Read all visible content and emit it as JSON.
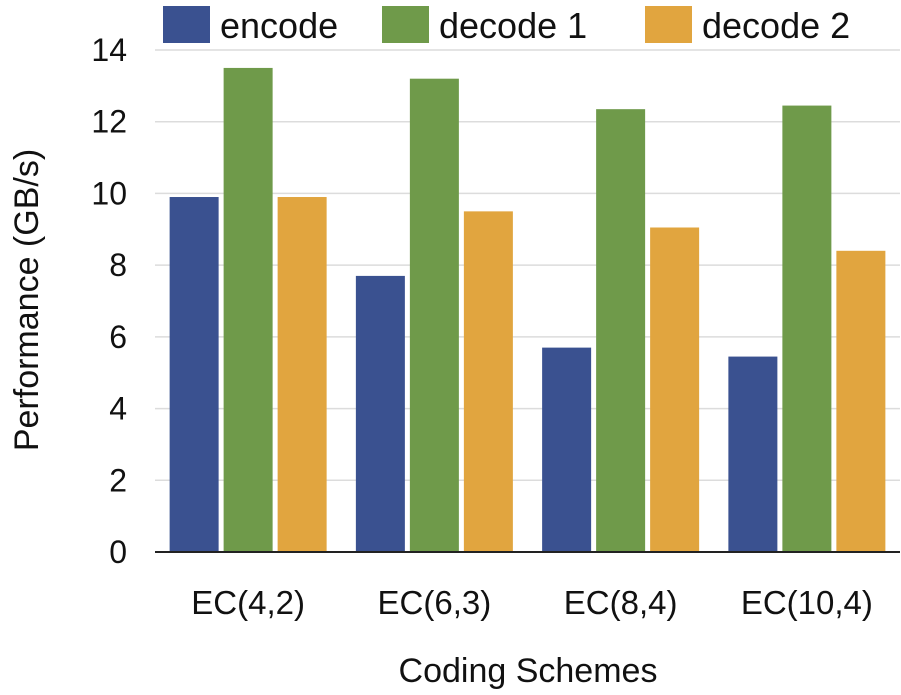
{
  "chart_data": {
    "type": "bar",
    "title": "",
    "xlabel": "Coding Schemes",
    "ylabel": "Performance (GB/s)",
    "ylim": [
      0,
      14
    ],
    "yticks": [
      0,
      2,
      4,
      6,
      8,
      10,
      12,
      14
    ],
    "grid": true,
    "legend_position": "top",
    "categories": [
      "EC(4,2)",
      "EC(6,3)",
      "EC(8,4)",
      "EC(10,4)"
    ],
    "series": [
      {
        "name": "encode",
        "color": "#3a5190",
        "values": [
          9.9,
          7.7,
          5.7,
          5.45
        ]
      },
      {
        "name": "decode 1",
        "color": "#6f9a4a",
        "values": [
          13.5,
          13.2,
          12.35,
          12.45
        ]
      },
      {
        "name": "decode 2",
        "color": "#e1a53f",
        "values": [
          9.9,
          9.5,
          9.05,
          8.4
        ]
      }
    ]
  }
}
